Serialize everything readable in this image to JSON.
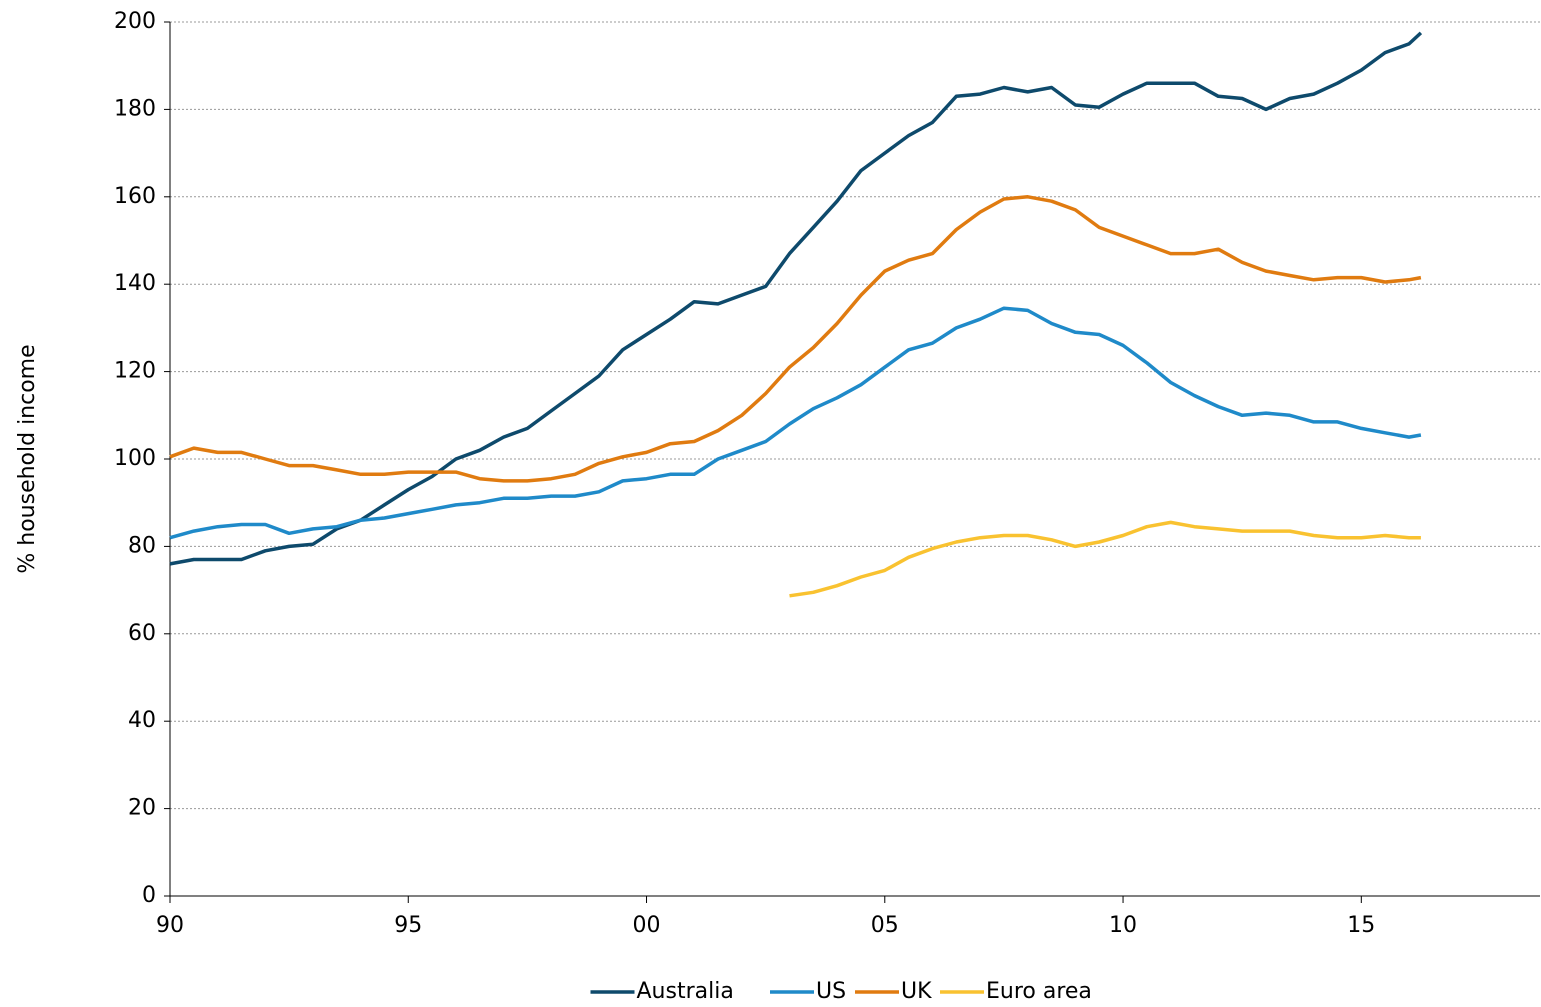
{
  "chart_data": {
    "type": "line",
    "ylabel": "% household income",
    "x": [
      1990,
      1990.5,
      1991,
      1991.5,
      1992,
      1992.5,
      1993,
      1993.5,
      1994,
      1994.5,
      1995,
      1995.5,
      1996,
      1996.5,
      1997,
      1997.5,
      1998,
      1998.5,
      1999,
      1999.5,
      2000,
      2000.5,
      2001,
      2001.5,
      2002,
      2002.5,
      2003,
      2003.5,
      2004,
      2004.5,
      2005,
      2005.5,
      2006,
      2006.5,
      2007,
      2007.5,
      2008,
      2008.5,
      2009,
      2009.5,
      2010,
      2010.5,
      2011,
      2011.5,
      2012,
      2012.5,
      2013,
      2013.5,
      2014,
      2014.5,
      2015,
      2015.5,
      2016,
      2016.25
    ],
    "series": [
      {
        "name": "Australia",
        "color": "#0e4a6c",
        "values": [
          76,
          77,
          77,
          77,
          79,
          80,
          80.5,
          84,
          86,
          89.5,
          93,
          96,
          100,
          102,
          105,
          107,
          111,
          115,
          119,
          125,
          128.5,
          132,
          136,
          135.5,
          137.5,
          139.5,
          147,
          153,
          159,
          166,
          170,
          174,
          177,
          183,
          183.5,
          185,
          184,
          185,
          181,
          180.5,
          183.5,
          186,
          186,
          186,
          183,
          182.5,
          180,
          182.5,
          183.5,
          186,
          189,
          193,
          195,
          197.5
        ]
      },
      {
        "name": "US",
        "color": "#1f8ac9",
        "values": [
          82,
          83.5,
          84.5,
          85,
          85,
          83,
          84,
          84.5,
          86,
          86.5,
          87.5,
          88.5,
          89.5,
          90,
          91,
          91,
          91.5,
          91.5,
          92.5,
          95,
          95.5,
          96.5,
          96.5,
          100,
          102,
          104,
          108,
          111.5,
          114,
          117,
          121,
          125,
          126.5,
          130,
          132,
          134.5,
          134,
          131,
          129,
          128.5,
          126,
          122,
          117.5,
          114.5,
          112,
          110,
          110.5,
          110,
          108.5,
          108.5,
          107,
          106,
          105,
          105.5
        ]
      },
      {
        "name": "UK",
        "color": "#e07b10",
        "values": [
          100.5,
          102.5,
          101.5,
          101.5,
          100,
          98.5,
          98.5,
          97.5,
          96.5,
          96.5,
          97,
          97,
          97,
          95.5,
          95,
          95,
          95.5,
          96.5,
          99,
          100.5,
          101.5,
          103.5,
          104,
          106.5,
          110,
          115,
          121,
          125.5,
          131,
          137.5,
          143,
          145.5,
          147,
          152.5,
          156.5,
          159.5,
          160,
          159,
          157,
          153,
          151,
          149,
          147,
          147,
          148,
          145,
          143,
          142,
          141,
          141.5,
          141.5,
          140.5,
          141,
          141.5
        ]
      },
      {
        "name": "Euro area",
        "color": "#f9c230",
        "values": [
          null,
          null,
          null,
          null,
          null,
          null,
          null,
          null,
          null,
          null,
          null,
          null,
          null,
          null,
          null,
          null,
          null,
          null,
          null,
          null,
          null,
          null,
          null,
          null,
          null,
          null,
          68.7,
          69.5,
          71,
          73,
          74.5,
          77.5,
          79.5,
          81,
          82,
          82.5,
          82.5,
          81.5,
          80,
          81,
          82.5,
          84.5,
          85.5,
          84.5,
          84,
          83.5,
          83.5,
          83.5,
          82.5,
          82,
          82,
          82.5,
          82,
          82
        ]
      }
    ],
    "xlim": [
      1990,
      2018.75
    ],
    "xticks": [
      {
        "value": 1990,
        "label": "90"
      },
      {
        "value": 1995,
        "label": "95"
      },
      {
        "value": 2000,
        "label": "00"
      },
      {
        "value": 2005,
        "label": "05"
      },
      {
        "value": 2010,
        "label": "10"
      },
      {
        "value": 2015,
        "label": "15"
      }
    ],
    "ylim": [
      0,
      200
    ],
    "yticks": [
      0,
      20,
      40,
      60,
      80,
      100,
      120,
      140,
      160,
      180,
      200
    ],
    "grid": true,
    "legend": "bottom"
  }
}
